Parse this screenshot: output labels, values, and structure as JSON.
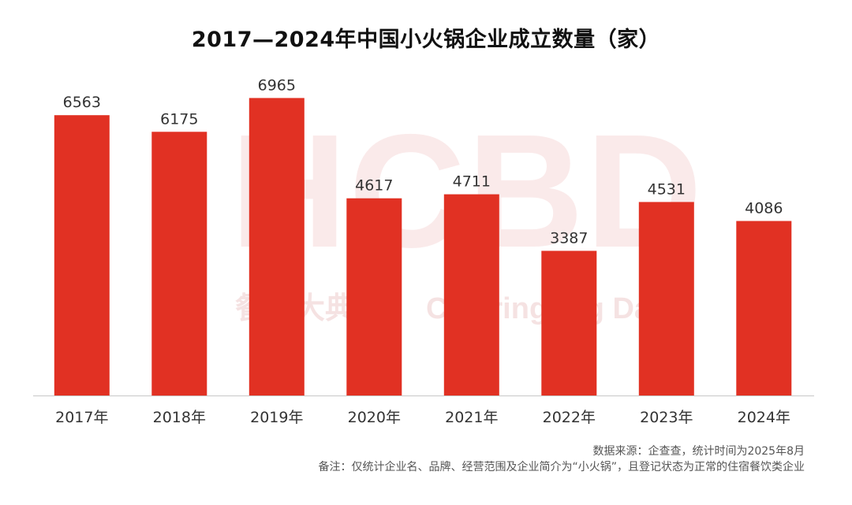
{
  "chart_data": {
    "type": "bar",
    "title": "2017—2024年中国小火锅企业成立数量（家）",
    "categories": [
      "2017年",
      "2018年",
      "2019年",
      "2020年",
      "2021年",
      "2022年",
      "2023年",
      "2024年"
    ],
    "series": [
      {
        "values": [
          6563,
          6175,
          6965,
          4617,
          4711,
          3387,
          4531,
          4086
        ]
      }
    ],
    "data_labels": [
      "6563",
      "6175",
      "6965",
      "4617",
      "4711",
      "3387",
      "4531",
      "4086"
    ],
    "ylim": [
      0,
      7600
    ],
    "grid": false,
    "legend": "none",
    "bar_color": "#e13123",
    "xlabel": "",
    "ylabel": ""
  },
  "watermark": {
    "letters": "HCBD",
    "sub_left": "餐饮大典",
    "sub_right": "Catering Big Data"
  },
  "footnotes": {
    "source": "数据来源：企查查，统计时间为2025年8月",
    "note": "备注：仅统计企业名、品牌、经营范围及企业简介为“小火锅”，且登记状态为正常的住宿餐饮类企业"
  }
}
